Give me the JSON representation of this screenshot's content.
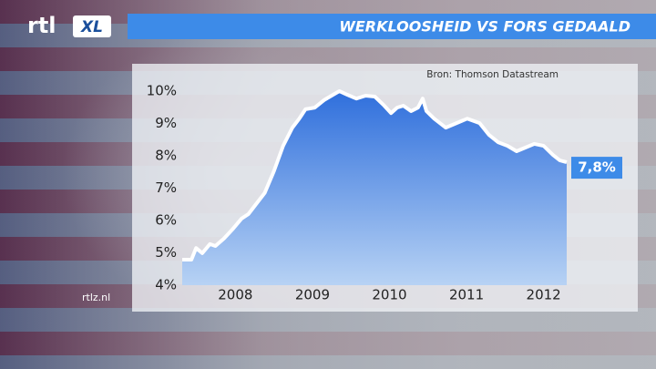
{
  "header": {
    "logo": "rtl",
    "logo_badge": "XL"
  },
  "footer": {
    "url": "rtlz.nl"
  },
  "chart_data": {
    "type": "area",
    "title": "WERKLOOSHEID VS FORS GEDAALD",
    "source": "Bron: Thomson Datastream",
    "x": [
      2007.31,
      2007.43,
      2007.49,
      2007.57,
      2007.67,
      2007.74,
      2007.85,
      2007.96,
      2008.08,
      2008.17,
      2008.26,
      2008.38,
      2008.5,
      2008.62,
      2008.74,
      2008.83,
      2008.91,
      2009.03,
      2009.15,
      2009.27,
      2009.35,
      2009.45,
      2009.57,
      2009.69,
      2009.81,
      2009.92,
      2010.02,
      2010.1,
      2010.18,
      2010.28,
      2010.37,
      2010.43,
      2010.48,
      2010.58,
      2010.73,
      2010.87,
      2011.01,
      2011.17,
      2011.29,
      2011.41,
      2011.53,
      2011.65,
      2011.76,
      2011.88,
      2012.0,
      2012.12,
      2012.21,
      2012.3
    ],
    "values": [
      4.79,
      4.79,
      5.15,
      4.99,
      5.27,
      5.21,
      5.44,
      5.72,
      6.06,
      6.2,
      6.48,
      6.85,
      7.52,
      8.31,
      8.87,
      9.15,
      9.44,
      9.49,
      9.72,
      9.89,
      10.0,
      9.89,
      9.77,
      9.86,
      9.83,
      9.58,
      9.32,
      9.49,
      9.55,
      9.38,
      9.49,
      9.77,
      9.38,
      9.15,
      8.87,
      9.01,
      9.15,
      9.01,
      8.65,
      8.42,
      8.31,
      8.14,
      8.25,
      8.37,
      8.31,
      8.03,
      7.86,
      7.8
    ],
    "value_labels": [
      null,
      null,
      null,
      null,
      null,
      null,
      null,
      null,
      null,
      null,
      null,
      null,
      null,
      null,
      null,
      null,
      null,
      null,
      null,
      null,
      null,
      null,
      null,
      null,
      null,
      null,
      null,
      null,
      null,
      null,
      null,
      null,
      null,
      null,
      null,
      null,
      null,
      null,
      null,
      null,
      null,
      null,
      null,
      null,
      null,
      null,
      null,
      "7,8%"
    ],
    "line_color": "#ffffff",
    "xlim": [
      2007.31,
      2012.3
    ],
    "xticks": [
      2008,
      2009,
      2010,
      2011,
      2012
    ],
    "ylim": [
      4,
      10
    ],
    "yticks": [
      {
        "value": 4,
        "label": "4%"
      },
      {
        "value": 5,
        "label": "5%"
      },
      {
        "value": 6,
        "label": "6%"
      },
      {
        "value": 7,
        "label": "7%"
      },
      {
        "value": 8,
        "label": "8%"
      },
      {
        "value": 9,
        "label": "9%"
      },
      {
        "value": 10,
        "label": "10%"
      }
    ],
    "grid": false
  }
}
